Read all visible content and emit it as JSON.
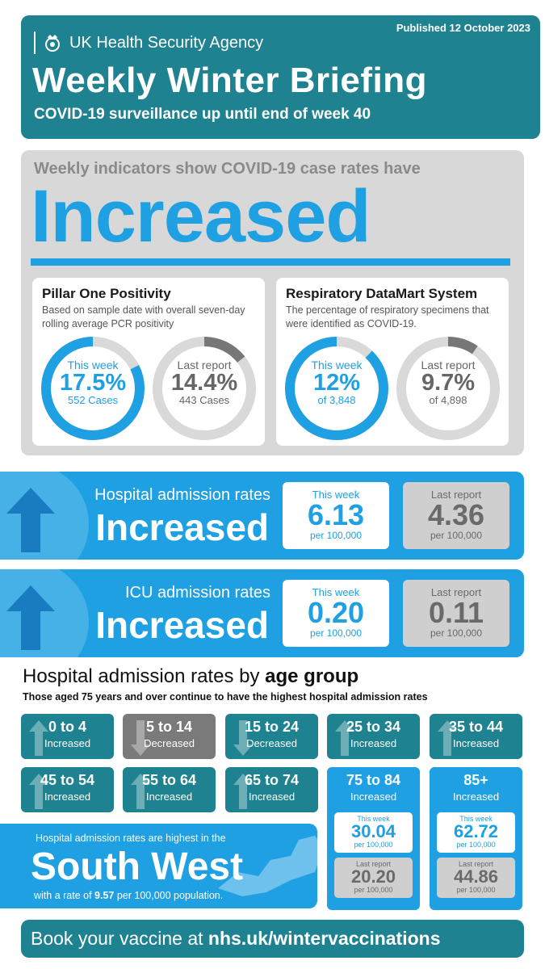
{
  "header": {
    "published": "Published 12 October 2023",
    "agency": "UK Health Security Agency",
    "title": "Weekly Winter Briefing",
    "subtitle": "COVID-19 surveillance up until end of week 40"
  },
  "indicators": {
    "lead": "Weekly indicators show COVID-19 case rates have",
    "status": "Increased",
    "pillar_one": {
      "title": "Pillar One Positivity",
      "description": "Based on sample date with overall seven-day rolling average PCR positivity",
      "this_week": {
        "label": "This week",
        "value": "17.5%",
        "sub": "552 Cases",
        "fraction": 0.175
      },
      "last_report": {
        "label": "Last report",
        "value": "14.4%",
        "sub": "443 Cases",
        "fraction": 0.144
      }
    },
    "datamart": {
      "title": "Respiratory DataMart System",
      "description": "The percentage of respiratory specimens that were identified as COVID-19.",
      "this_week": {
        "label": "This week",
        "value": "12%",
        "sub": "of 3,848",
        "fraction": 0.12
      },
      "last_report": {
        "label": "Last report",
        "value": "9.7%",
        "sub": "of 4,898",
        "fraction": 0.097
      }
    }
  },
  "hospital": {
    "label": "Hospital admission rates",
    "status": "Increased",
    "this_week": {
      "label": "This week",
      "value": "6.13",
      "sub": "per 100,000"
    },
    "last_report": {
      "label": "Last report",
      "value": "4.36",
      "sub": "per 100,000"
    }
  },
  "icu": {
    "label": "ICU admission rates",
    "status": "Increased",
    "this_week": {
      "label": "This week",
      "value": "0.20",
      "sub": "per 100,000"
    },
    "last_report": {
      "label": "Last report",
      "value": "0.11",
      "sub": "per 100,000"
    }
  },
  "age_section": {
    "title_prefix": "Hospital admission rates by ",
    "title_bold": "age group",
    "description": "Those aged 75 years and over continue to have the highest hospital admission rates",
    "groups": [
      {
        "range": "0 to 4",
        "status": "Increased"
      },
      {
        "range": "5 to 14",
        "status": "Decreased"
      },
      {
        "range": "15 to 24",
        "status": "Decreased"
      },
      {
        "range": "25 to 34",
        "status": "Increased"
      },
      {
        "range": "35 to 44",
        "status": "Increased"
      },
      {
        "range": "45 to 54",
        "status": "Increased"
      },
      {
        "range": "55 to 64",
        "status": "Increased"
      },
      {
        "range": "65 to 74",
        "status": "Increased"
      }
    ],
    "highlight": [
      {
        "range": "75 to 84",
        "status": "Increased",
        "this_week": {
          "label": "This week",
          "value": "30.04",
          "sub": "per 100,000"
        },
        "last_report": {
          "label": "Last report",
          "value": "20.20",
          "sub": "per 100,000"
        }
      },
      {
        "range": "85+",
        "status": "Increased",
        "this_week": {
          "label": "This week",
          "value": "62.72",
          "sub": "per 100,000"
        },
        "last_report": {
          "label": "Last report",
          "value": "44.86",
          "sub": "per 100,000"
        }
      }
    ]
  },
  "region": {
    "lead": "Hospital admission rates are highest in the",
    "name": "South West",
    "rate_prefix": "with a rate of ",
    "rate_value": "9.57",
    "rate_suffix": " per 100,000 population."
  },
  "footer": {
    "prefix": "Book your vaccine at ",
    "link": "nhs.uk/wintervaccinations"
  },
  "colors": {
    "teal": "#1f8290",
    "blue": "#1ea0e2",
    "grey_panel": "#d8d8d8",
    "grey_box": "#cfcfcf",
    "dark_grey": "#7a7a7a"
  }
}
